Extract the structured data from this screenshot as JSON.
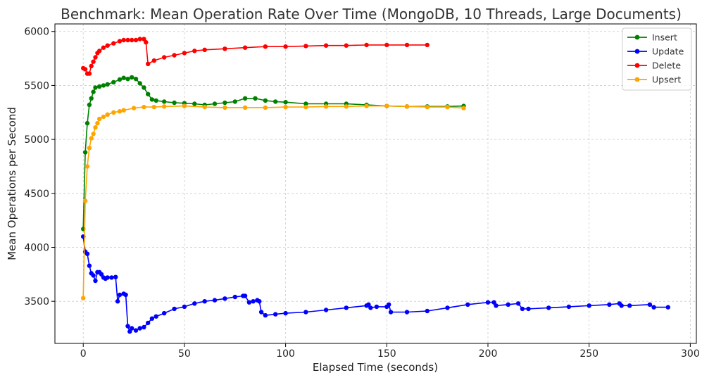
{
  "chart_data": {
    "type": "line",
    "title": "Benchmark: Mean Operation Rate Over Time (MongoDB, 10 Threads, Large Documents)",
    "xlabel": "Elapsed Time (seconds)",
    "ylabel": "Mean Operations per Second",
    "xlim": [
      -14,
      303
    ],
    "ylim": [
      3110,
      6070
    ],
    "xticks": [
      0,
      50,
      100,
      150,
      200,
      250,
      300
    ],
    "yticks": [
      3500,
      4000,
      4500,
      5000,
      5500,
      6000
    ],
    "grid": true,
    "legend_position": "top-right",
    "series": [
      {
        "name": "Insert",
        "color": "#008000",
        "x": [
          0,
          1,
          2,
          3,
          4,
          5,
          6,
          8,
          10,
          12,
          15,
          18,
          20,
          22,
          24,
          26,
          28,
          30,
          32,
          34,
          36,
          40,
          45,
          50,
          55,
          60,
          65,
          70,
          75,
          80,
          85,
          90,
          95,
          100,
          110,
          120,
          130,
          140,
          150,
          160,
          170,
          180,
          188
        ],
        "y": [
          4170,
          4880,
          5150,
          5320,
          5380,
          5440,
          5480,
          5490,
          5500,
          5510,
          5530,
          5555,
          5570,
          5560,
          5575,
          5560,
          5520,
          5480,
          5420,
          5370,
          5360,
          5350,
          5340,
          5335,
          5330,
          5320,
          5330,
          5340,
          5350,
          5380,
          5380,
          5360,
          5350,
          5345,
          5330,
          5330,
          5330,
          5320,
          5310,
          5305,
          5305,
          5305,
          5310
        ]
      },
      {
        "name": "Update",
        "color": "#0000ff",
        "x": [
          0,
          1,
          2,
          3,
          4,
          5,
          6,
          7,
          8,
          9,
          10,
          11,
          12,
          14,
          16,
          17,
          18,
          20,
          21,
          22,
          23,
          24,
          26,
          28,
          30,
          32,
          34,
          36,
          40,
          45,
          50,
          55,
          60,
          65,
          70,
          75,
          79,
          80,
          82,
          84,
          86,
          87,
          88,
          90,
          95,
          100,
          110,
          120,
          130,
          140,
          141,
          142,
          145,
          150,
          151,
          152,
          160,
          170,
          180,
          190,
          200,
          203,
          204,
          210,
          215,
          217,
          220,
          230,
          240,
          250,
          260,
          265,
          266,
          270,
          280,
          282,
          289
        ],
        "y": [
          4100,
          3960,
          3940,
          3830,
          3760,
          3740,
          3690,
          3770,
          3770,
          3750,
          3720,
          3710,
          3720,
          3720,
          3725,
          3500,
          3560,
          3570,
          3560,
          3270,
          3220,
          3250,
          3230,
          3250,
          3260,
          3300,
          3340,
          3360,
          3390,
          3430,
          3450,
          3480,
          3500,
          3510,
          3525,
          3540,
          3550,
          3550,
          3490,
          3500,
          3510,
          3500,
          3400,
          3370,
          3380,
          3390,
          3400,
          3420,
          3440,
          3460,
          3470,
          3440,
          3450,
          3450,
          3470,
          3400,
          3400,
          3410,
          3440,
          3470,
          3490,
          3490,
          3460,
          3470,
          3480,
          3430,
          3430,
          3440,
          3450,
          3460,
          3470,
          3480,
          3460,
          3460,
          3470,
          3445,
          3445
        ]
      },
      {
        "name": "Delete",
        "color": "#ff0000",
        "x": [
          0,
          1,
          2,
          3,
          4,
          5,
          6,
          7,
          8,
          10,
          12,
          15,
          18,
          20,
          22,
          24,
          26,
          28,
          30,
          31,
          32,
          35,
          40,
          45,
          50,
          55,
          60,
          70,
          80,
          90,
          100,
          110,
          120,
          130,
          140,
          150,
          160,
          170
        ],
        "y": [
          5660,
          5650,
          5610,
          5610,
          5680,
          5720,
          5760,
          5800,
          5820,
          5850,
          5870,
          5890,
          5910,
          5920,
          5920,
          5920,
          5920,
          5930,
          5930,
          5900,
          5700,
          5730,
          5760,
          5780,
          5800,
          5820,
          5830,
          5840,
          5850,
          5860,
          5860,
          5865,
          5870,
          5870,
          5875,
          5875,
          5875,
          5875
        ]
      },
      {
        "name": "Upsert",
        "color": "#ffa500",
        "x": [
          0,
          1,
          2,
          3,
          4,
          5,
          6,
          7,
          8,
          10,
          12,
          15,
          18,
          20,
          25,
          30,
          35,
          40,
          50,
          60,
          70,
          80,
          90,
          100,
          110,
          120,
          130,
          140,
          150,
          160,
          170,
          180,
          188
        ],
        "y": [
          3530,
          4430,
          4750,
          4920,
          5010,
          5050,
          5110,
          5150,
          5190,
          5210,
          5230,
          5250,
          5260,
          5270,
          5290,
          5300,
          5300,
          5305,
          5310,
          5300,
          5295,
          5295,
          5295,
          5300,
          5300,
          5305,
          5305,
          5310,
          5310,
          5305,
          5300,
          5300,
          5290
        ]
      }
    ]
  }
}
